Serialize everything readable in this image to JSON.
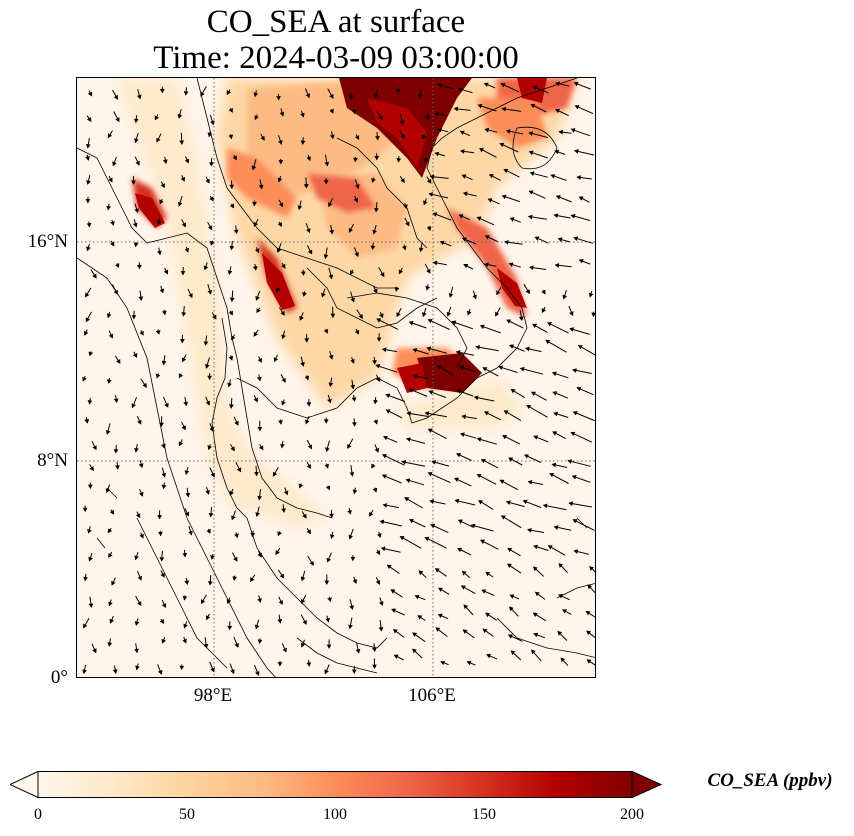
{
  "title": {
    "line1": "CO_SEA at surface",
    "line2": "Time: 2024-03-09 03:00:00"
  },
  "map": {
    "lat_ticks": [
      "16°N",
      "8°N",
      "0°"
    ],
    "lon_ticks": [
      "98°E",
      "106°E"
    ],
    "lat_tick_values": [
      16,
      8,
      0
    ],
    "lon_tick_values": [
      98,
      106
    ],
    "lon_range": [
      93,
      112
    ],
    "lat_range": [
      0,
      22
    ],
    "gridlines": true,
    "gridline_style": "dotted",
    "quiver": true
  },
  "colorbar": {
    "label": "CO_SEA (ppbv)",
    "ticks": [
      "0",
      "50",
      "100",
      "150",
      "200"
    ],
    "range": [
      0,
      200
    ],
    "colormap": "OrRd",
    "extend": "both",
    "colors": [
      "#fff7ec",
      "#fee8c8",
      "#fdd49e",
      "#fdbb84",
      "#fc8d59",
      "#ef6548",
      "#d7301f",
      "#b30000",
      "#7f0000"
    ]
  }
}
